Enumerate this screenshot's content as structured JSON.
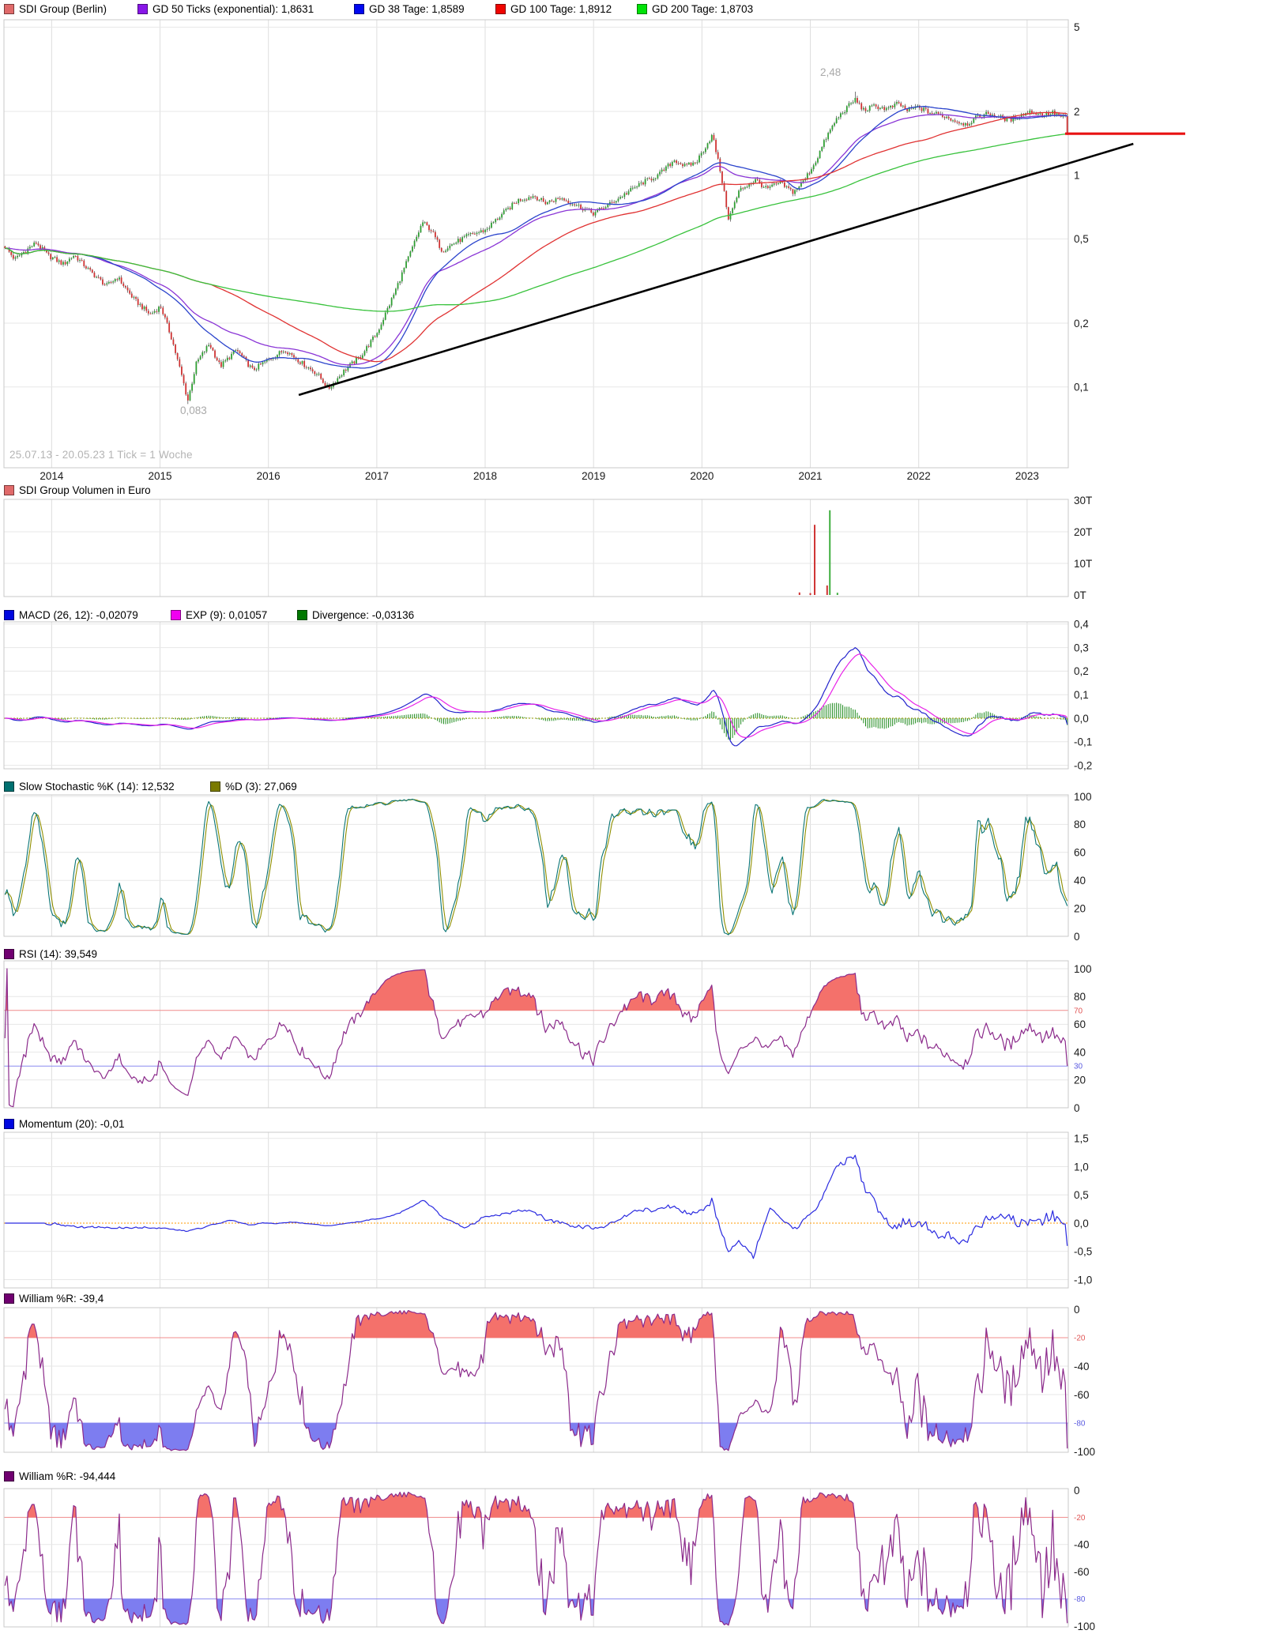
{
  "chart_data": [
    {
      "id": "price",
      "type": "candlestick",
      "scale": "log",
      "legend": [
        {
          "label": "SDI Group (Berlin)",
          "color": "#e06a6a"
        },
        {
          "label": "GD 50 Ticks (exponential): 1,8631",
          "color": "#8816e8"
        },
        {
          "label": "GD 38 Tage: 1,8589",
          "color": "#0008f0"
        },
        {
          "label": "GD 100 Tage: 1,8912",
          "color": "#f00400"
        },
        {
          "label": "GD 200 Tage: 1,8703",
          "color": "#00e208"
        }
      ],
      "footnote": "25.07.13 - 20.05.23   1 Tick = 1 Woche",
      "x_range": {
        "start": "25.07.13",
        "end": "20.05.23",
        "t0": 2013.56,
        "t1": 2023.38
      },
      "y_ticks": [
        {
          "v": 5,
          "label": "5"
        },
        {
          "v": 2,
          "label": "2"
        },
        {
          "v": 1,
          "label": "1"
        },
        {
          "v": 0.5,
          "label": "0,5"
        },
        {
          "v": 0.2,
          "label": "0,2"
        },
        {
          "v": 0.1,
          "label": "0,1"
        }
      ],
      "x_ticks": [
        {
          "t": 2014,
          "label": "2014"
        },
        {
          "t": 2015,
          "label": "2015"
        },
        {
          "t": 2016,
          "label": "2016"
        },
        {
          "t": 2017,
          "label": "2017"
        },
        {
          "t": 2018,
          "label": "2018"
        },
        {
          "t": 2019,
          "label": "2019"
        },
        {
          "t": 2020,
          "label": "2020"
        },
        {
          "t": 2021,
          "label": "2021"
        },
        {
          "t": 2022,
          "label": "2022"
        },
        {
          "t": 2023,
          "label": "2023"
        }
      ],
      "annotations": [
        {
          "text": "2,48",
          "role": "all-time-high"
        },
        {
          "text": "0,083",
          "role": "all-time-low"
        }
      ],
      "current_price_line": {
        "value": 1.57,
        "color": "#e81212"
      },
      "trend_line": {
        "from_t": 2016.28,
        "from_v": 0.0916,
        "to_t": 2023.98,
        "to_v": 1.406,
        "color": "#000000"
      },
      "ma_lines": [
        {
          "name": "gd50-ticks-exponential",
          "type": "ema",
          "period": 50,
          "color": "#8a35d6"
        },
        {
          "name": "gd38-tage",
          "type": "sma",
          "period": 38,
          "color": "#2b44cc"
        },
        {
          "name": "gd100-tage",
          "type": "sma",
          "period": 100,
          "color": "#e03232"
        },
        {
          "name": "gd200-tage",
          "type": "sma",
          "period": 200,
          "color": "#38c23c"
        }
      ],
      "candle_colors": {
        "up": "#2f9e33",
        "down": "#cf3333",
        "wick": "#222222"
      },
      "weeks": 512,
      "price_path": [
        [
          2013.56,
          0.46
        ],
        [
          2013.65,
          0.4
        ],
        [
          2013.75,
          0.44
        ],
        [
          2013.85,
          0.48
        ],
        [
          2013.95,
          0.42
        ],
        [
          2014.1,
          0.38
        ],
        [
          2014.2,
          0.42
        ],
        [
          2014.35,
          0.35
        ],
        [
          2014.5,
          0.3
        ],
        [
          2014.6,
          0.33
        ],
        [
          2014.75,
          0.26
        ],
        [
          2014.9,
          0.22
        ],
        [
          2015.0,
          0.24
        ],
        [
          2015.1,
          0.17
        ],
        [
          2015.2,
          0.11
        ],
        [
          2015.25,
          0.086
        ],
        [
          2015.33,
          0.13
        ],
        [
          2015.45,
          0.16
        ],
        [
          2015.55,
          0.125
        ],
        [
          2015.7,
          0.15
        ],
        [
          2015.85,
          0.12
        ],
        [
          2016.0,
          0.135
        ],
        [
          2016.15,
          0.15
        ],
        [
          2016.3,
          0.13
        ],
        [
          2016.45,
          0.115
        ],
        [
          2016.55,
          0.098
        ],
        [
          2016.7,
          0.12
        ],
        [
          2016.85,
          0.14
        ],
        [
          2017.0,
          0.18
        ],
        [
          2017.15,
          0.27
        ],
        [
          2017.3,
          0.42
        ],
        [
          2017.42,
          0.6
        ],
        [
          2017.5,
          0.55
        ],
        [
          2017.6,
          0.44
        ],
        [
          2017.72,
          0.48
        ],
        [
          2017.85,
          0.52
        ],
        [
          2018.0,
          0.55
        ],
        [
          2018.15,
          0.65
        ],
        [
          2018.3,
          0.76
        ],
        [
          2018.45,
          0.8
        ],
        [
          2018.55,
          0.74
        ],
        [
          2018.7,
          0.78
        ],
        [
          2018.85,
          0.72
        ],
        [
          2019.0,
          0.66
        ],
        [
          2019.15,
          0.73
        ],
        [
          2019.3,
          0.82
        ],
        [
          2019.45,
          0.92
        ],
        [
          2019.6,
          1.0
        ],
        [
          2019.75,
          1.18
        ],
        [
          2019.85,
          1.1
        ],
        [
          2019.95,
          1.15
        ],
        [
          2020.1,
          1.55
        ],
        [
          2020.18,
          1.0
        ],
        [
          2020.25,
          0.62
        ],
        [
          2020.35,
          0.85
        ],
        [
          2020.5,
          0.95
        ],
        [
          2020.6,
          0.86
        ],
        [
          2020.72,
          0.92
        ],
        [
          2020.85,
          0.83
        ],
        [
          2020.95,
          0.95
        ],
        [
          2021.05,
          1.15
        ],
        [
          2021.15,
          1.5
        ],
        [
          2021.25,
          1.85
        ],
        [
          2021.35,
          2.1
        ],
        [
          2021.42,
          2.28
        ],
        [
          2021.5,
          2.02
        ],
        [
          2021.6,
          2.12
        ],
        [
          2021.72,
          2.05
        ],
        [
          2021.82,
          2.18
        ],
        [
          2021.9,
          2.02
        ],
        [
          2022.0,
          2.1
        ],
        [
          2022.1,
          1.98
        ],
        [
          2022.22,
          1.92
        ],
        [
          2022.35,
          1.8
        ],
        [
          2022.45,
          1.74
        ],
        [
          2022.55,
          1.88
        ],
        [
          2022.65,
          1.96
        ],
        [
          2022.75,
          1.88
        ],
        [
          2022.85,
          1.82
        ],
        [
          2022.95,
          1.92
        ],
        [
          2023.05,
          2.0
        ],
        [
          2023.15,
          1.92
        ],
        [
          2023.25,
          1.97
        ],
        [
          2023.32,
          1.9
        ],
        [
          2023.38,
          1.56
        ]
      ],
      "special_points": {
        "low_t": 2015.25,
        "low_v": 0.083,
        "high_t": 2021.42,
        "high_v": 2.48,
        "last_close": 1.56
      }
    },
    {
      "id": "volume",
      "type": "bar",
      "legend": [
        {
          "label": "SDI Group Volumen in Euro",
          "color": "#e06a6a"
        }
      ],
      "y_ticks": [
        {
          "v": 30000,
          "label": "30T"
        },
        {
          "v": 20000,
          "label": "20T"
        },
        {
          "v": 10000,
          "label": "10T"
        },
        {
          "v": 0,
          "label": "0T",
          "grid": false
        }
      ],
      "spikes": [
        {
          "t": 2020.9,
          "v": 800,
          "color": "#cf3333"
        },
        {
          "t": 2021.0,
          "v": 600,
          "color": "#cf3333"
        },
        {
          "t": 2021.04,
          "v": 22200,
          "color": "#cf3333"
        },
        {
          "t": 2021.155,
          "v": 3000,
          "color": "#cf3333"
        },
        {
          "t": 2021.18,
          "v": 26800,
          "color": "#3fae3f"
        },
        {
          "t": 2021.25,
          "v": 700,
          "color": "#3fae3f"
        }
      ]
    },
    {
      "id": "macd",
      "type": "line",
      "legend": [
        {
          "label": "MACD (26, 12): -0,02079",
          "color": "#0008e0"
        },
        {
          "label": "EXP (9): 0,01057",
          "color": "#f000f0"
        },
        {
          "label": "Divergence: -0,03136",
          "color": "#007800"
        }
      ],
      "params": {
        "slow": 26,
        "fast": 12,
        "signal": 9
      },
      "colors": {
        "macd": "#2222cc",
        "signal": "#e822e8",
        "histogram": "#1d8a1d",
        "zero": "#979700"
      },
      "y_ticks": [
        {
          "v": 0.4,
          "label": "0,4"
        },
        {
          "v": 0.3,
          "label": "0,3"
        },
        {
          "v": 0.2,
          "label": "0,2"
        },
        {
          "v": 0.1,
          "label": "0,1"
        },
        {
          "v": 0,
          "label": "0,0",
          "grid": false
        },
        {
          "v": -0.1,
          "label": "-0,1"
        },
        {
          "v": -0.2,
          "label": "-0,2"
        }
      ]
    },
    {
      "id": "stoch",
      "type": "line",
      "legend": [
        {
          "label": "Slow Stochastic %K (14): 12,532",
          "color": "#007070"
        },
        {
          "label": "%D (3): 27,069",
          "color": "#7a7a00"
        }
      ],
      "params": {
        "k": 14,
        "smooth": 3,
        "d": 3
      },
      "colors": {
        "k": "#0a7575",
        "d": "#8f8f00"
      },
      "y_ticks": [
        {
          "v": 100,
          "label": "100"
        },
        {
          "v": 80,
          "label": "80"
        },
        {
          "v": 60,
          "label": "60"
        },
        {
          "v": 40,
          "label": "40"
        },
        {
          "v": 20,
          "label": "20"
        },
        {
          "v": 0,
          "label": "0",
          "grid": false
        }
      ]
    },
    {
      "id": "rsi",
      "type": "line",
      "legend": [
        {
          "label": "RSI (14): 39,549",
          "color": "#700070"
        }
      ],
      "params": {
        "period": 14
      },
      "colors": {
        "line": "#8b2a8b",
        "over_fill": "#f4716b"
      },
      "thresholds": {
        "upper": 70,
        "lower": 30,
        "upper_color": "#f08c8c",
        "lower_color": "#8c8cf0"
      },
      "y_ticks": [
        {
          "v": 100,
          "label": "100"
        },
        {
          "v": 80,
          "label": "80"
        },
        {
          "v": 70,
          "label": "70",
          "small": true,
          "color": "#e05555",
          "grid": false
        },
        {
          "v": 60,
          "label": "60"
        },
        {
          "v": 40,
          "label": "40"
        },
        {
          "v": 30,
          "label": "30",
          "small": true,
          "color": "#5a5ae0",
          "grid": false
        },
        {
          "v": 20,
          "label": "20"
        },
        {
          "v": 0,
          "label": "0",
          "grid": false
        }
      ]
    },
    {
      "id": "momentum",
      "type": "line",
      "legend": [
        {
          "label": "Momentum (20): -0,01",
          "color": "#0008e0"
        }
      ],
      "params": {
        "period": 20
      },
      "colors": {
        "line": "#2a2ae0",
        "zero": "#ff9900"
      },
      "y_ticks": [
        {
          "v": 1.5,
          "label": "1,5"
        },
        {
          "v": 1.0,
          "label": "1,0"
        },
        {
          "v": 0.5,
          "label": "0,5"
        },
        {
          "v": 0,
          "label": "0,0",
          "grid": false
        },
        {
          "v": -0.5,
          "label": "-0,5"
        },
        {
          "v": -1.0,
          "label": "-1,0"
        }
      ]
    },
    {
      "id": "williams1",
      "type": "line",
      "legend": [
        {
          "label": "William %R: -39,4",
          "color": "#700070"
        }
      ],
      "params": {
        "period": 28
      },
      "colors": {
        "line": "#8b2a8b",
        "over_fill": "#f4716b",
        "under_fill": "#7d7df0"
      },
      "thresholds": {
        "upper": -20,
        "lower": -80,
        "upper_color": "#f08c8c",
        "lower_color": "#8c8cf0"
      },
      "y_ticks": [
        {
          "v": 0,
          "label": "0",
          "grid": false
        },
        {
          "v": -20,
          "label": "-20",
          "small": true,
          "color": "#e05555",
          "grid": false
        },
        {
          "v": -40,
          "label": "-40"
        },
        {
          "v": -60,
          "label": "-60"
        },
        {
          "v": -80,
          "label": "-80",
          "small": true,
          "color": "#5a5ae0",
          "grid": false
        },
        {
          "v": -100,
          "label": "-100",
          "grid": false
        }
      ]
    },
    {
      "id": "williams2",
      "type": "line",
      "legend": [
        {
          "label": "William %R: -94,444",
          "color": "#700070"
        }
      ],
      "params": {
        "period": 10
      },
      "colors": {
        "line": "#8b2a8b",
        "over_fill": "#f4716b",
        "under_fill": "#7d7df0"
      },
      "thresholds": {
        "upper": -20,
        "lower": -80,
        "upper_color": "#f08c8c",
        "lower_color": "#8c8cf0"
      },
      "y_ticks": [
        {
          "v": 0,
          "label": "0",
          "grid": false
        },
        {
          "v": -20,
          "label": "-20",
          "small": true,
          "color": "#e05555",
          "grid": false
        },
        {
          "v": -40,
          "label": "-40"
        },
        {
          "v": -60,
          "label": "-60"
        },
        {
          "v": -80,
          "label": "-80",
          "small": true,
          "color": "#5a5ae0",
          "grid": false
        },
        {
          "v": -100,
          "label": "-100",
          "grid": false
        }
      ]
    }
  ]
}
